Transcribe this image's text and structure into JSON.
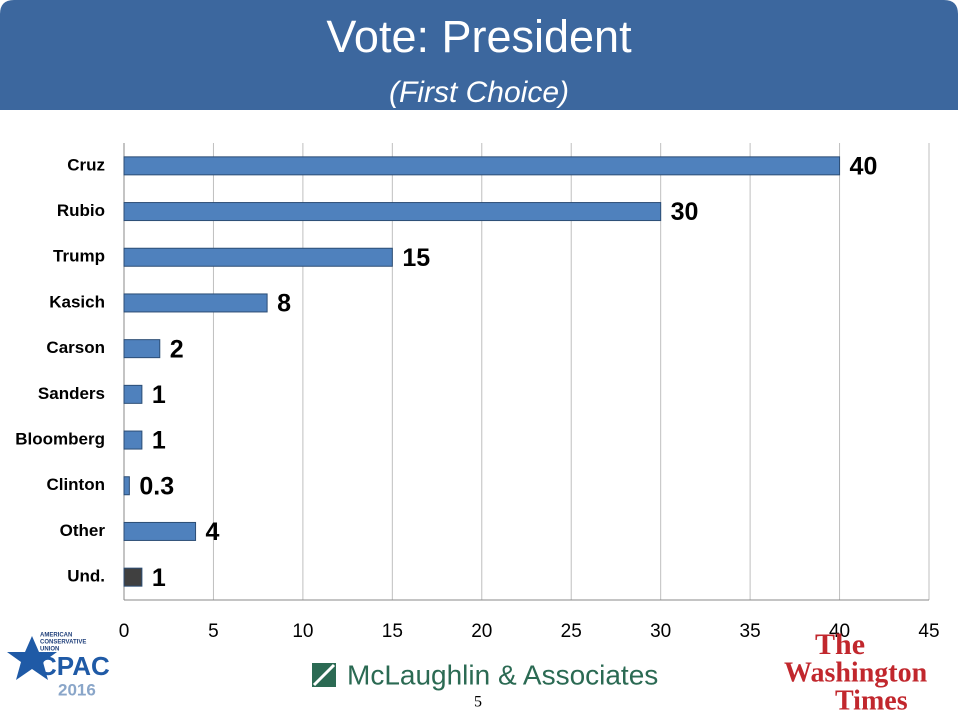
{
  "chart_data": {
    "type": "bar",
    "orientation": "horizontal",
    "title": "Vote: President",
    "subtitle": "(First Choice)",
    "categories": [
      "Cruz",
      "Rubio",
      "Trump",
      "Kasich",
      "Carson",
      "Sanders",
      "Bloomberg",
      "Clinton",
      "Other",
      "Und."
    ],
    "values": [
      40,
      30,
      15,
      8,
      2,
      1,
      1,
      0.3,
      4,
      1
    ],
    "colors": [
      "#4f81bd",
      "#4f81bd",
      "#4f81bd",
      "#4f81bd",
      "#4f81bd",
      "#4f81bd",
      "#4f81bd",
      "#4f81bd",
      "#4f81bd",
      "#404040"
    ],
    "xlim": [
      0,
      45
    ],
    "xticks": [
      0,
      5,
      10,
      15,
      20,
      25,
      30,
      35,
      40,
      45
    ],
    "grid": true
  },
  "footer": {
    "left_logo": [
      "AMERICAN",
      "CONSERVATIVE",
      "UNION",
      "CPAC",
      "2016"
    ],
    "center_logo": "McLaughlin & Associates",
    "page_number": "5",
    "right_logo": [
      "The",
      "Washington",
      "Times"
    ]
  }
}
